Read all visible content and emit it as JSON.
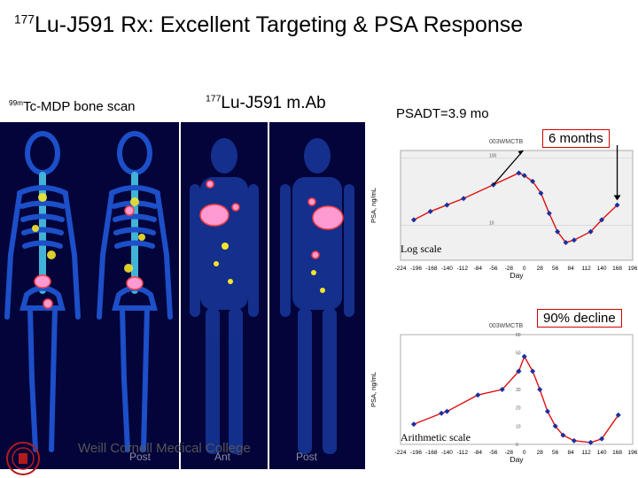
{
  "title": {
    "sup": "177",
    "text": "Lu-J591 Rx:  Excellent Targeting & PSA Response"
  },
  "captions": {
    "bone_sup": "99m",
    "bone_text": "Tc-MDP bone scan",
    "mab_sup": "177",
    "mab_text": "Lu-J591 m.Ab",
    "psadt": "PSADT=3.9 mo"
  },
  "scan_views": {
    "bone_post": "Post",
    "mab_ant": "Ant",
    "mab_post": "Post"
  },
  "footer": {
    "institution": "Weill Cornell Medical College"
  },
  "colors": {
    "scan_bg": "#03043a",
    "hot_spot": "#ff9ad2",
    "series_line": "#e01010",
    "series_point": "#1a2fa0",
    "callout_border": "#d40000"
  },
  "callouts": {
    "six_months": "6 months",
    "decline": "90% decline"
  },
  "chart_data": [
    {
      "type": "line",
      "header": "003WMCTB",
      "xlabel": "Day",
      "ylabel": "PSA, ng/mL",
      "ytick_labels": [
        "100",
        "10"
      ],
      "note": "Log scale",
      "x_ticks": [
        -224,
        -196,
        -168,
        -140,
        -112,
        -84,
        -56,
        -28,
        0,
        28,
        56,
        84,
        112,
        140,
        168,
        196
      ],
      "xlim": [
        -224,
        196
      ],
      "ylim": [
        3,
        130
      ],
      "y_scale": "log",
      "series": [
        {
          "x": [
            -200,
            -170,
            -140,
            -110,
            -56,
            -10,
            0,
            15,
            30,
            45,
            60,
            75,
            90,
            120,
            140,
            168
          ],
          "y": [
            12,
            16,
            20,
            25,
            40,
            60,
            55,
            45,
            30,
            15,
            8,
            5.5,
            6,
            8,
            12,
            20
          ]
        }
      ]
    },
    {
      "type": "line",
      "header": "003WMCTB",
      "xlabel": "Day",
      "ylabel": "PSA, ng/mL",
      "ytick_labels": [
        "60",
        "50",
        "40",
        "30",
        "20",
        "10",
        "0"
      ],
      "note": "Arithmetic scale",
      "x_ticks": [
        -224,
        -196,
        -168,
        -140,
        -112,
        -84,
        -56,
        -28,
        0,
        28,
        56,
        84,
        112,
        140,
        168,
        196
      ],
      "xlim": [
        -224,
        196
      ],
      "ylim": [
        0,
        60
      ],
      "y_scale": "linear",
      "series": [
        {
          "x": [
            -200,
            -150,
            -140,
            -84,
            -40,
            -10,
            0,
            15,
            28,
            42,
            56,
            70,
            90,
            120,
            140,
            170
          ],
          "y": [
            11,
            17,
            18,
            27,
            30,
            40,
            48,
            40,
            30,
            18,
            10,
            5,
            2,
            1,
            3,
            16
          ]
        }
      ]
    }
  ]
}
